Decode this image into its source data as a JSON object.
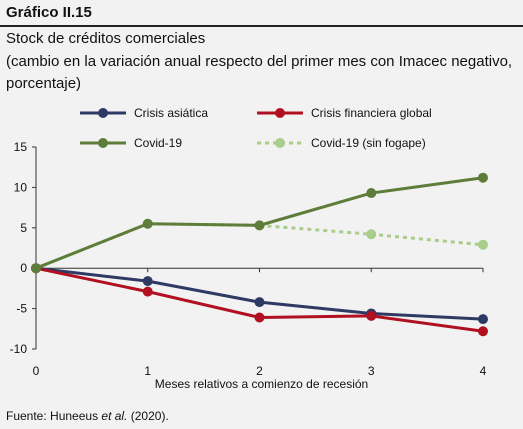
{
  "header": {
    "figure_label": "Gráfico II.15",
    "title": "Stock de créditos comerciales",
    "subtitle": "(cambio en la variación anual respecto del primer mes con Imacec negativo, porcentaje)"
  },
  "source": {
    "prefix": "Fuente: Huneeus ",
    "italic": "et al.",
    "suffix": " (2020)."
  },
  "chart_data": {
    "type": "line",
    "x": [
      0,
      1,
      2,
      3,
      4
    ],
    "xlabel": "Meses relativos a comienzo de recesión",
    "ylabel": "",
    "xlim": [
      0,
      4
    ],
    "ylim": [
      -10,
      15
    ],
    "yticks": [
      -10,
      -5,
      0,
      5,
      10,
      15
    ],
    "xticks": [
      0,
      1,
      2,
      3,
      4
    ],
    "grid": false,
    "legend_position": "top",
    "series": [
      {
        "name": "Crisis asiática",
        "color": "#2e3a64",
        "dashed": false,
        "values": [
          0,
          -1.6,
          -4.2,
          -5.6,
          -6.3
        ]
      },
      {
        "name": "Crisis financiera global",
        "color": "#b01020",
        "dashed": false,
        "values": [
          0,
          -2.9,
          -6.1,
          -5.9,
          -7.8
        ]
      },
      {
        "name": "Covid-19",
        "color": "#5e7d3a",
        "dashed": false,
        "values": [
          0,
          5.5,
          5.3,
          9.3,
          11.2
        ]
      },
      {
        "name": "Covid-19 (sin fogape)",
        "color": "#a9cd8a",
        "dashed": true,
        "values": [
          0,
          5.5,
          5.3,
          4.2,
          2.9
        ]
      }
    ]
  }
}
